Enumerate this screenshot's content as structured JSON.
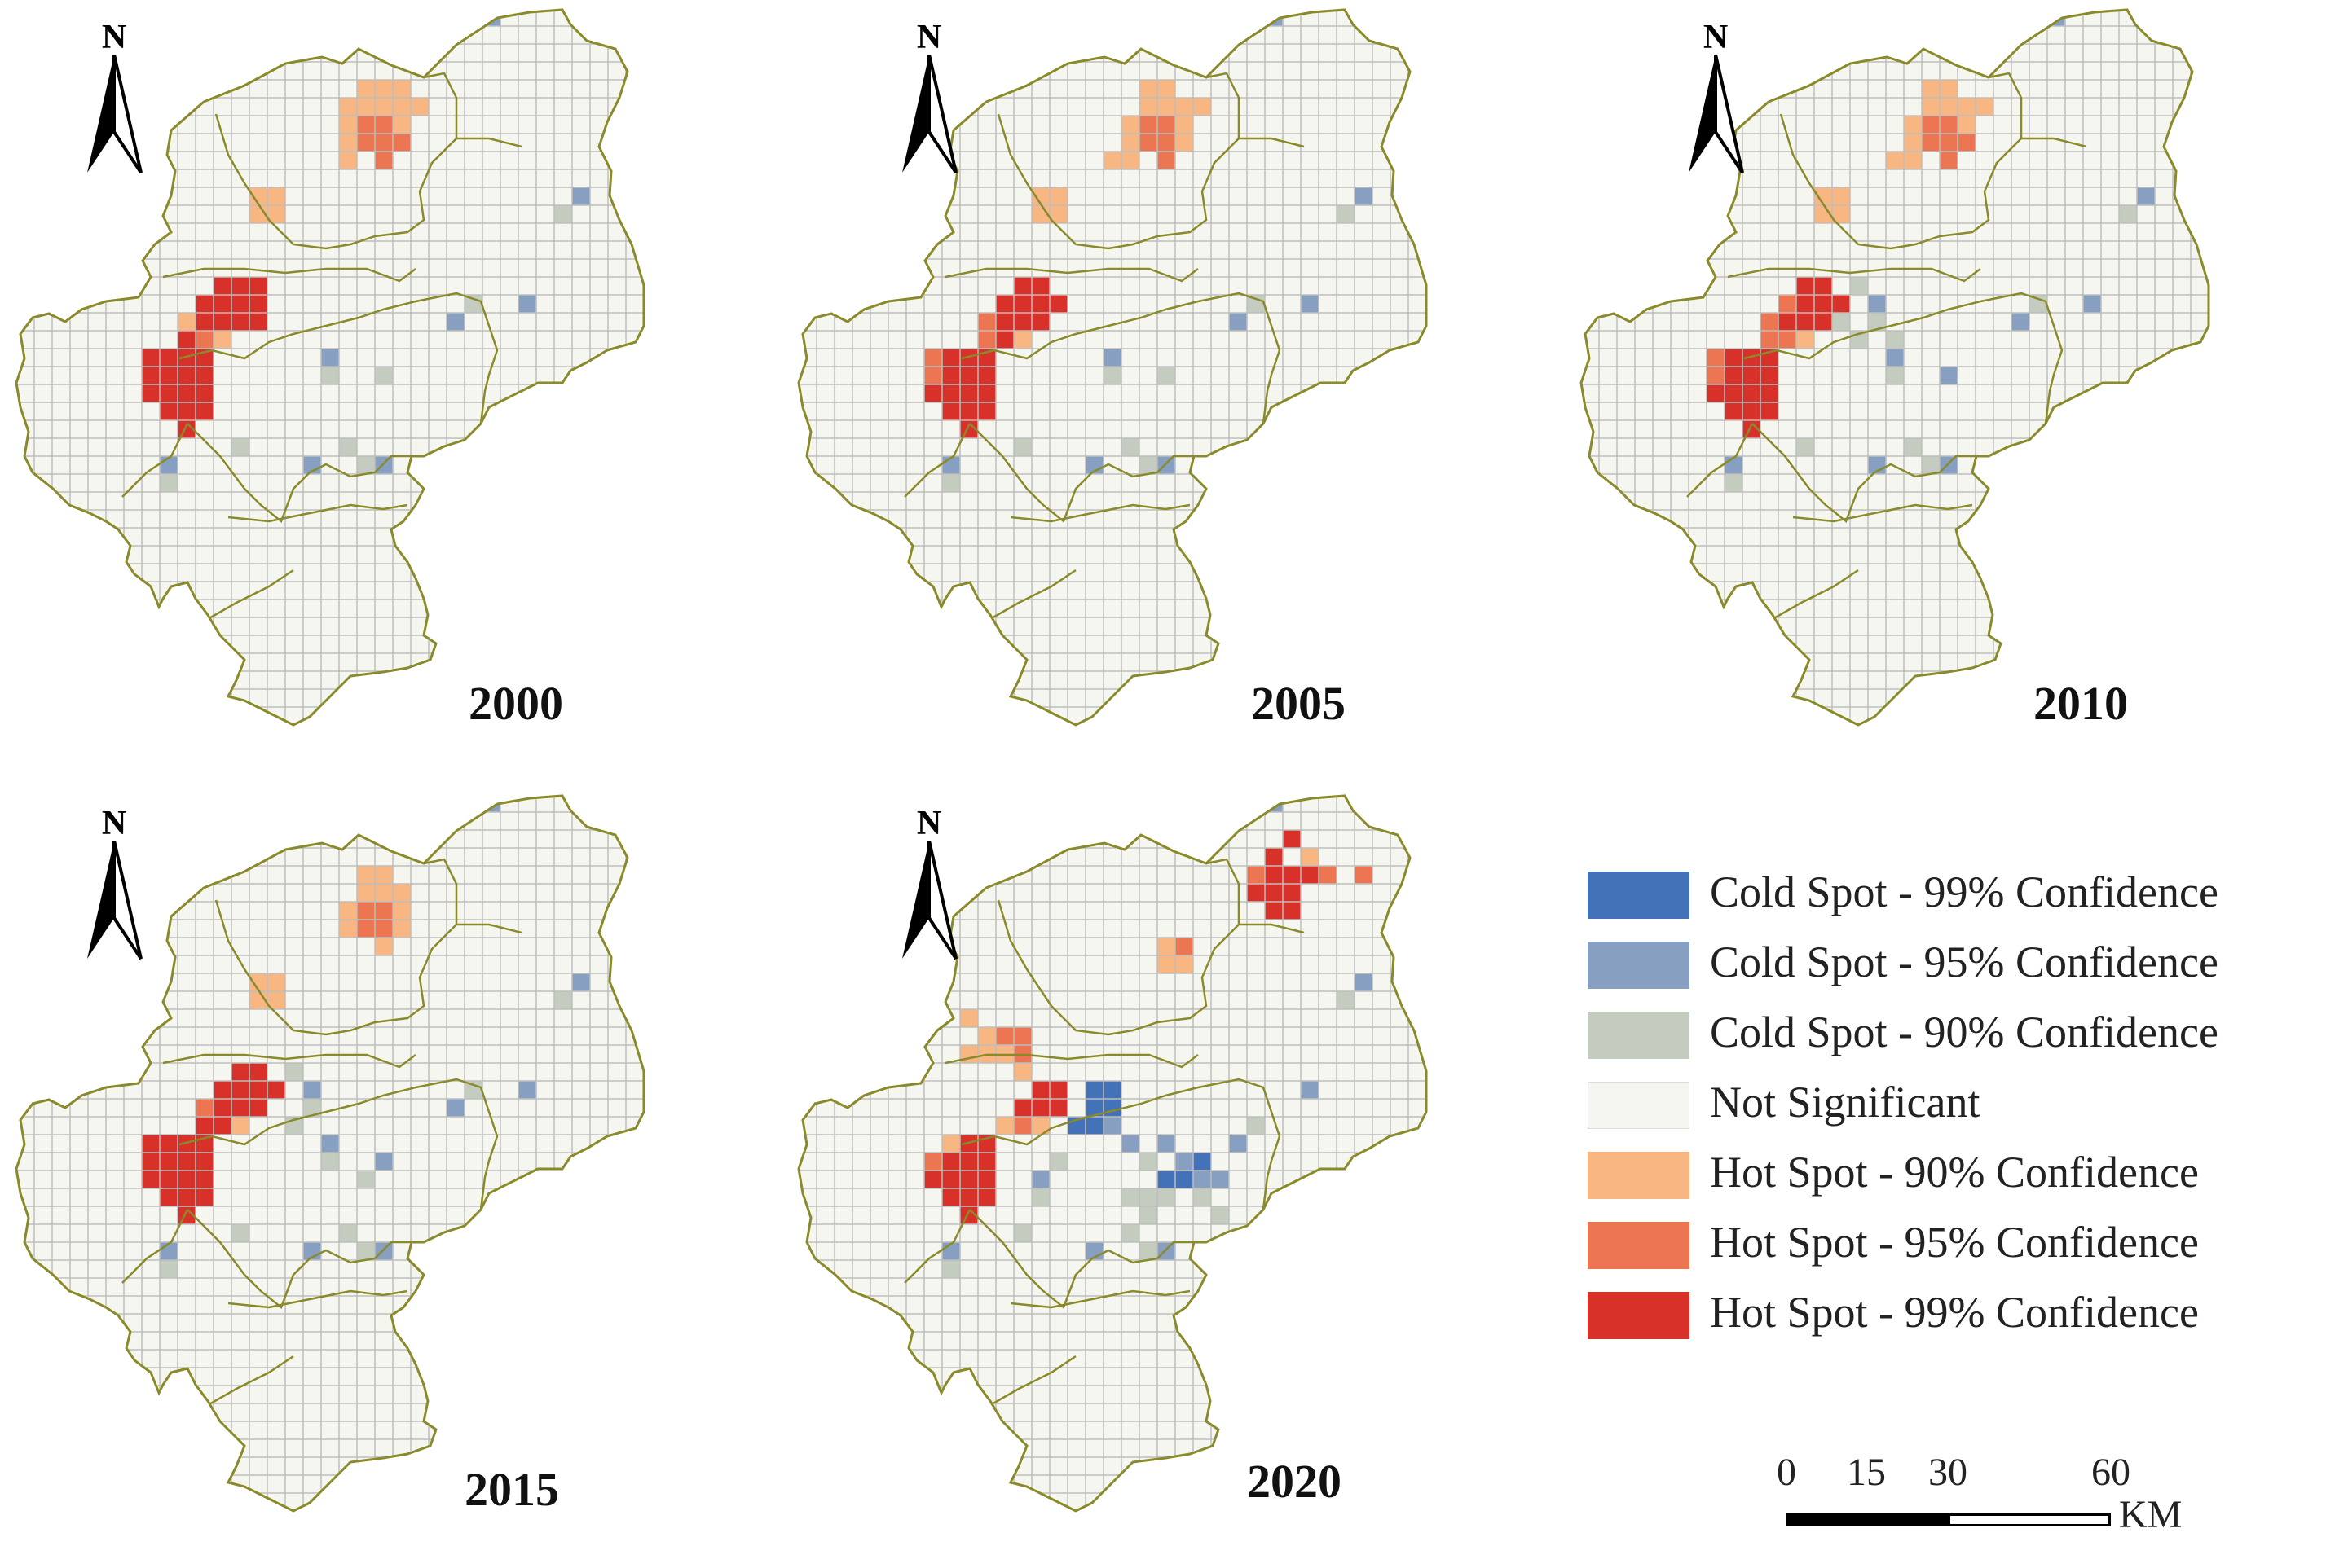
{
  "panels": [
    {
      "year": "2000"
    },
    {
      "year": "2005"
    },
    {
      "year": "2010"
    },
    {
      "year": "2015"
    },
    {
      "year": "2020"
    }
  ],
  "north_label": "N",
  "legend": [
    {
      "label": "Cold Spot - 99% Confidence",
      "color": "#4472b8"
    },
    {
      "label": "Cold Spot - 95% Confidence",
      "color": "#879fc0"
    },
    {
      "label": "Cold Spot - 90% Confidence",
      "color": "#c3ccbf"
    },
    {
      "label": "Not Significant",
      "color": "#f6f6f1"
    },
    {
      "label": "Hot Spot - 90% Confidence",
      "color": "#f8b683"
    },
    {
      "label": "Hot Spot - 95% Confidence",
      "color": "#ec7552"
    },
    {
      "label": "Hot Spot - 99% Confidence",
      "color": "#d7312a"
    }
  ],
  "scale": {
    "ticks": [
      "0",
      "15",
      "30",
      "60"
    ],
    "unit": "KM"
  },
  "colors": {
    "border": "#8a8a2a",
    "grid": "#bdbdbd"
  }
}
